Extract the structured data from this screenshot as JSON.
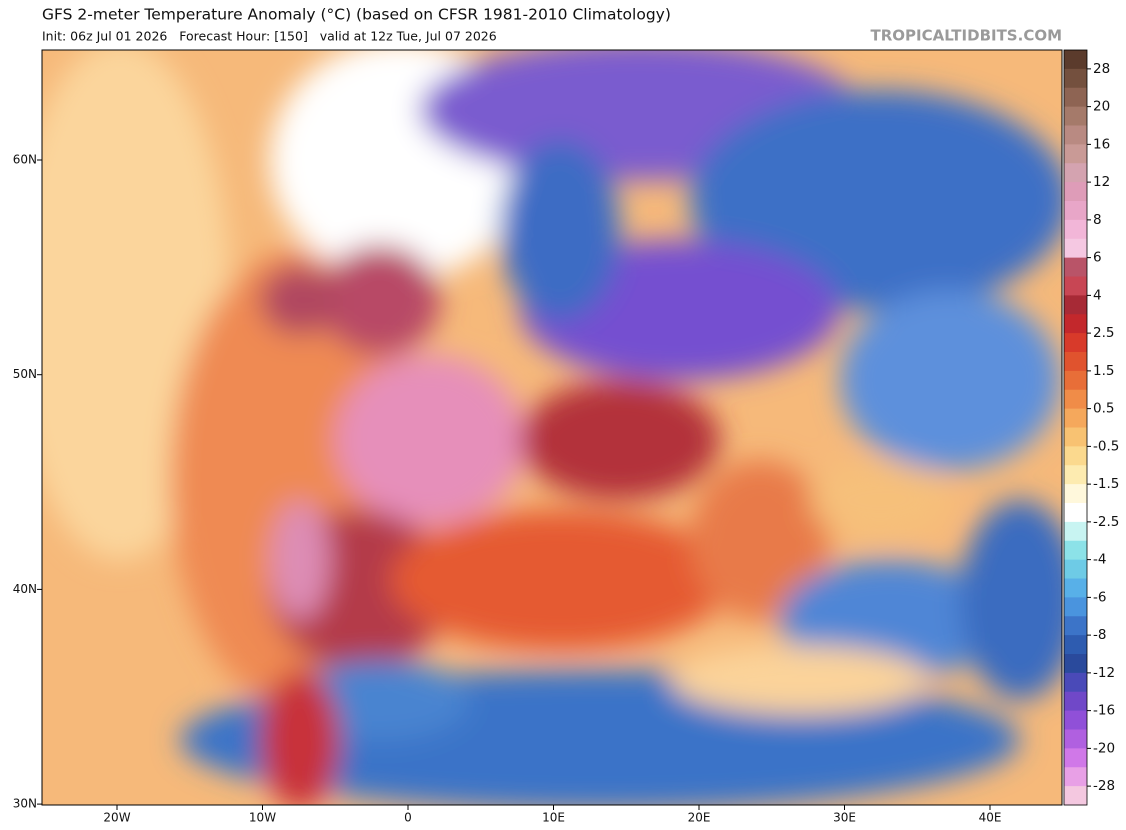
{
  "header": {
    "title": "GFS 2-meter Temperature Anomaly (°C) (based on CFSR 1981-2010 Climatology)",
    "subtitle": "Init: 06z Jul 01 2026   Forecast Hour: [150]   valid at 12z Tue, Jul 07 2026",
    "watermark": "TROPICALTIDBITS.COM"
  },
  "map": {
    "lat_labels": [
      "60N",
      "50N",
      "40N",
      "30N"
    ],
    "lon_labels": [
      "20W",
      "10W",
      "0",
      "10E",
      "20E",
      "30E",
      "40E"
    ]
  },
  "colorbar": {
    "labels": [
      "28",
      "20",
      "16",
      "12",
      "8",
      "6",
      "4",
      "2.5",
      "1.5",
      "0.5",
      "-0.5",
      "-1.5",
      "-2.5",
      "-4",
      "-6",
      "-8",
      "-12",
      "-16",
      "-20",
      "-28"
    ],
    "colors": [
      "#5b3b2c",
      "#74503e",
      "#8e6453",
      "#a57a6a",
      "#b98a82",
      "#c99a96",
      "#d4a3b0",
      "#de9cb8",
      "#e8a6c8",
      "#f2b6d8",
      "#f5c8e2",
      "#b95468",
      "#c84654",
      "#a72a36",
      "#c3282c",
      "#d83a2a",
      "#e0532e",
      "#e86e38",
      "#f08c48",
      "#f5a85c",
      "#f8c272",
      "#fbd98e",
      "#fdebb0",
      "#fff8dc",
      "#ffffff",
      "#c8f4f2",
      "#8ce2e8",
      "#6ecbe6",
      "#58b0e8",
      "#4a94de",
      "#3c74c8",
      "#2e5cb0",
      "#2a4a9c",
      "#4a4ab8",
      "#7048c8",
      "#9050d8",
      "#b060e0",
      "#d078e8",
      "#e8a0e6",
      "#f4c8e0"
    ]
  }
}
